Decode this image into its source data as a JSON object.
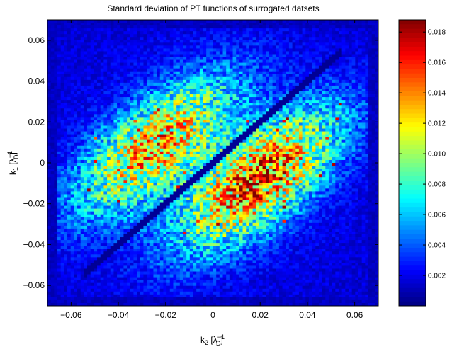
{
  "chart_data": {
    "type": "heatmap",
    "title": "Standard deviation of PT functions of surrogated datsets",
    "xlabel": "k",
    "xlabel_sub": "2",
    "xlabel_unit_open": " [λ",
    "xlabel_unit_sup": "−1",
    "xlabel_unit_sub": "D",
    "xlabel_unit_close": "]",
    "ylabel": "k",
    "ylabel_sub": "1",
    "ylabel_unit_open": " [λ",
    "ylabel_unit_sup": "−1",
    "ylabel_unit_sub": "D",
    "ylabel_unit_close": "]",
    "xlim": [
      -0.07,
      0.07
    ],
    "ylim": [
      -0.07,
      0.07
    ],
    "x_ticks": [
      "−0.06",
      "−0.04",
      "−0.02",
      "0",
      "0.02",
      "0.04",
      "0.06"
    ],
    "y_ticks": [
      "0.06",
      "0.04",
      "0.02",
      "0",
      "−0.02",
      "−0.04",
      "−0.06"
    ],
    "colorbar": {
      "range": [
        0,
        0.0188
      ],
      "ticks": [
        "0.018",
        "0.016",
        "0.014",
        "0.012",
        "0.010",
        "0.008",
        "0.006",
        "0.004",
        "0.002"
      ],
      "colormap": "jet"
    },
    "grid_size": [
      100,
      100
    ],
    "structure": {
      "description_values": "two elongated high-variance lobes parallel to the k1 = k2 diagonal, separated by a low-variance diagonal line",
      "diagonal_value": 0.0004,
      "background_value": 0.0015,
      "upper_lobe_center": [
        -0.025,
        0.008
      ],
      "upper_lobe_peak": 0.0105,
      "lower_lobe_center": [
        0.02,
        -0.008
      ],
      "lower_lobe_peak": 0.0125,
      "max_value": 0.0185
    }
  }
}
